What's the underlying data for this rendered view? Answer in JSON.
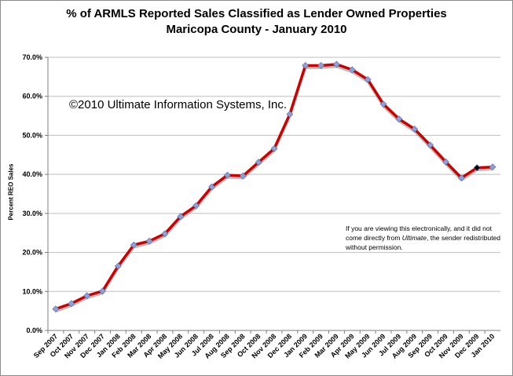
{
  "title_line1": "% of ARMLS Reported Sales Classified as Lender Owned Properties",
  "title_line2": "Maricopa County - January 2010",
  "copyright": "©2010 Ultimate Information Systems, Inc.",
  "note": {
    "part1": "If you are viewing this electronically, and it did not come directly from ",
    "emphasis": "Ultimate",
    "part2": ", the sender redistributed without permission."
  },
  "colors": {
    "line": "#cc0000",
    "marker": "#8ea0d8",
    "marker_highlight": "#000000"
  },
  "chart_data": {
    "type": "line",
    "title": "% of ARMLS Reported Sales Classified as Lender Owned Properties",
    "subtitle": "Maricopa County - January 2010",
    "xlabel": "",
    "ylabel": "Percent REO Sales",
    "ylim": [
      0,
      70
    ],
    "yticks": [
      "0.0%",
      "10.0%",
      "20.0%",
      "30.0%",
      "40.0%",
      "50.0%",
      "60.0%",
      "70.0%"
    ],
    "grid": "horizontal",
    "categories": [
      "Sep 2007",
      "Oct 2007",
      "Nov 2007",
      "Dec 2007",
      "Jan 2008",
      "Feb 2008",
      "Mar 2008",
      "Apr 2008",
      "May 2008",
      "Jun 2008",
      "Jul 2008",
      "Aug 2008",
      "Sep 2008",
      "Oct 2008",
      "Nov 2008",
      "Dec 2008",
      "Jan 2009",
      "Feb 2009",
      "Mar 2009",
      "Apr 2009",
      "May 2009",
      "Jun 2009",
      "Jul 2009",
      "Aug 2009",
      "Sep 2009",
      "Oct 2009",
      "Nov 2009",
      "Dec 2009",
      "Jan 2010"
    ],
    "values": [
      5.5,
      6.9,
      8.9,
      10.1,
      16.5,
      21.9,
      22.9,
      24.8,
      29.2,
      32.0,
      36.8,
      39.8,
      39.6,
      43.1,
      46.6,
      55.4,
      67.9,
      67.9,
      68.2,
      66.8,
      64.3,
      58.0,
      54.2,
      51.6,
      47.5,
      43.2,
      39.1,
      41.7,
      41.9
    ],
    "highlight_index": 27
  }
}
